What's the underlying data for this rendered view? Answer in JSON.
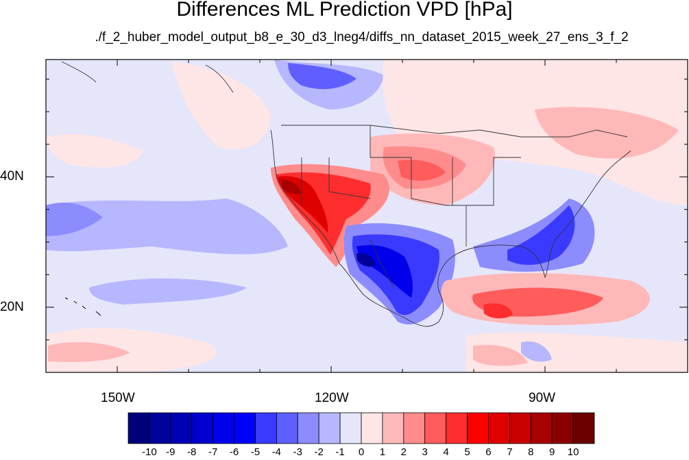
{
  "title": "Differences ML Prediction VPD [hPa]",
  "subtitle": "./f_2_huber_model_output_b8_e_30_d3_lneg4/diffs_nn_dataset_2015_week_27_ens_3_f_2",
  "map": {
    "projection": "cylindrical equidistant",
    "lon_range": [
      -160,
      -70
    ],
    "lat_range": [
      10,
      58
    ],
    "x_ticks": [
      {
        "label": "150W",
        "lon": -150
      },
      {
        "label": "120W",
        "lon": -120
      },
      {
        "label": "90W",
        "lon": -90
      }
    ],
    "y_ticks": [
      {
        "label": "40N",
        "lat": 40
      },
      {
        "label": "20N",
        "lat": 20
      }
    ],
    "background_value": -1,
    "features": [
      {
        "region": "Southwest US / California",
        "sign": "positive",
        "max_value": 9
      },
      {
        "region": "Central Plains",
        "sign": "positive",
        "max_value": 5
      },
      {
        "region": "Mexico",
        "sign": "negative",
        "min_value": -9
      },
      {
        "region": "US East Coast / Florida",
        "sign": "negative",
        "min_value": -5
      },
      {
        "region": "Gulf of Alaska",
        "sign": "negative",
        "min_value": -5
      },
      {
        "region": "Caribbean",
        "sign": "positive",
        "max_value": 6
      }
    ]
  },
  "colorbar": {
    "labels": [
      "-10",
      "-9",
      "-8",
      "-7",
      "-6",
      "-5",
      "-4",
      "-3",
      "-2",
      "-1",
      "0",
      "1",
      "2",
      "3",
      "4",
      "5",
      "6",
      "7",
      "8",
      "9",
      "10"
    ],
    "colors": [
      "#00007a",
      "#00009a",
      "#0000b4",
      "#0000cf",
      "#0000ea",
      "#0000ff",
      "#3a3aff",
      "#5f5fff",
      "#8c8cff",
      "#b7b7ff",
      "#e6e6fb",
      "#ffe6e6",
      "#ffb8b8",
      "#ff8c8c",
      "#ff5c5c",
      "#ff2e2e",
      "#ff0000",
      "#e00000",
      "#c80000",
      "#a80000",
      "#8a0000",
      "#6a0000"
    ]
  }
}
